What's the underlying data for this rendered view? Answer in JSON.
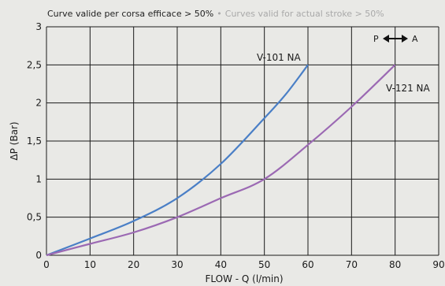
{
  "chart_data": {
    "type": "line",
    "note": {
      "primary": "Curve valide per corsa efficace > 50%",
      "bullet": "•",
      "secondary": "Curves valid for actual stroke > 50%"
    },
    "xlabel": "FLOW - Q (l/min)",
    "ylabel": "ΔP (Bar)",
    "xlim": [
      0,
      90
    ],
    "ylim": [
      0,
      3
    ],
    "x_ticks": [
      0,
      10,
      20,
      30,
      40,
      50,
      60,
      70,
      80,
      90
    ],
    "x_tick_labels": [
      "0",
      "10",
      "20",
      "30",
      "40",
      "50",
      "60",
      "70",
      "80",
      "90"
    ],
    "y_ticks": [
      0,
      0.5,
      1,
      1.5,
      2,
      2.5,
      3
    ],
    "y_tick_labels": [
      "0",
      "0,5",
      "1",
      "1,5",
      "2",
      "2,5",
      "3"
    ],
    "grid": true,
    "flow_direction": {
      "from": "P",
      "to": "A"
    },
    "series": [
      {
        "name": "V-101 NA",
        "color": "#4a7fc6",
        "x": [
          0,
          10,
          20,
          30,
          40,
          50,
          55,
          60
        ],
        "y": [
          0,
          0.22,
          0.45,
          0.75,
          1.2,
          1.8,
          2.12,
          2.5
        ]
      },
      {
        "name": "V-121 NA",
        "color": "#9b69b3",
        "x": [
          0,
          10,
          20,
          30,
          40,
          50,
          60,
          70,
          80
        ],
        "y": [
          0,
          0.15,
          0.3,
          0.5,
          0.75,
          1.0,
          1.45,
          1.95,
          2.5
        ]
      }
    ]
  }
}
